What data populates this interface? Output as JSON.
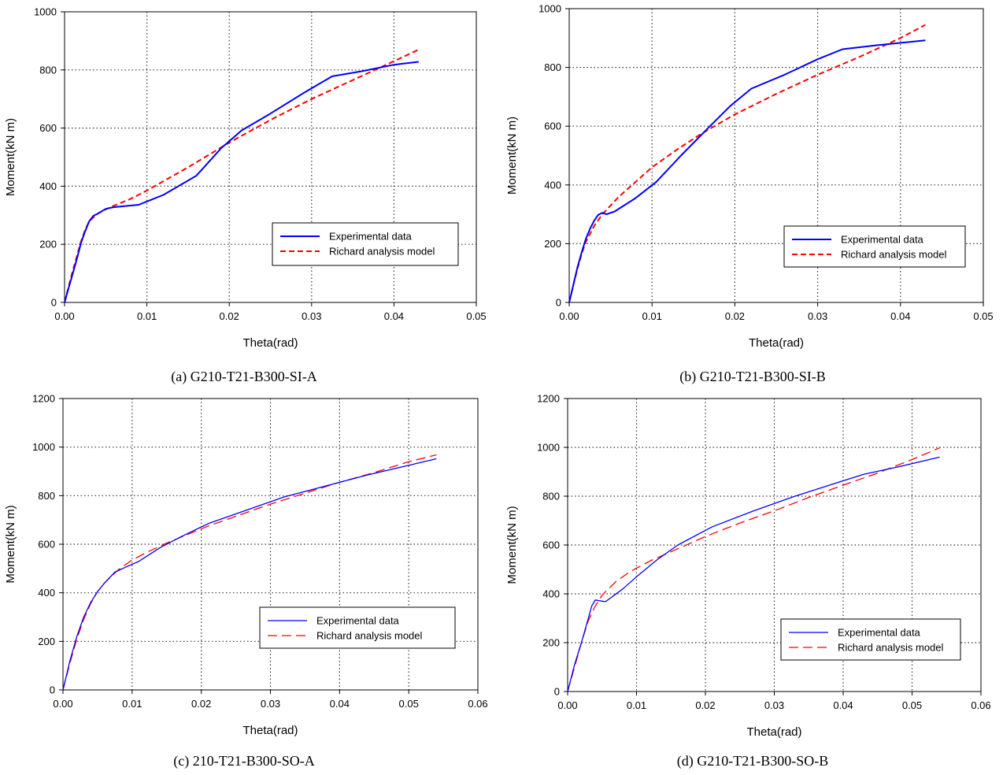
{
  "colors": {
    "experimental": "#0000ff",
    "richard": "#ff0000",
    "grid": "#333333"
  },
  "chart_data": [
    {
      "type": "line",
      "caption": "(a)  G210-T21-B300-SI-A",
      "xlabel": "Theta(rad)",
      "ylabel": "Moment(kN m)",
      "xlim": [
        0,
        0.05
      ],
      "ylim": [
        0,
        1000
      ],
      "xticks": [
        "0.00",
        "0.01",
        "0.02",
        "0.03",
        "0.04",
        "0.05"
      ],
      "yticks": [
        "0",
        "200",
        "400",
        "600",
        "800",
        "1000"
      ],
      "grid": true,
      "legend_position": "bottom-right",
      "series": [
        {
          "name": "Experimental data",
          "style": "solid",
          "color": "#0000ff",
          "x": [
            0,
            0.0005,
            0.001,
            0.0015,
            0.002,
            0.0025,
            0.003,
            0.0035,
            0.004,
            0.005,
            0.006,
            0.009,
            0.012,
            0.016,
            0.019,
            0.0215,
            0.025,
            0.029,
            0.0325,
            0.036,
            0.04,
            0.043
          ],
          "y": [
            0,
            50,
            100,
            150,
            205,
            245,
            280,
            298,
            305,
            322,
            328,
            336,
            370,
            436,
            530,
            592,
            650,
            720,
            778,
            795,
            818,
            828
          ]
        },
        {
          "name": "Richard analysis model",
          "style": "dashed",
          "color": "#ff0000",
          "x": [
            0,
            0.0005,
            0.001,
            0.0015,
            0.002,
            0.0025,
            0.003,
            0.004,
            0.005,
            0.006,
            0.008,
            0.01,
            0.015,
            0.02,
            0.025,
            0.03,
            0.035,
            0.04,
            0.043
          ],
          "y": [
            0,
            55,
            110,
            160,
            210,
            250,
            280,
            305,
            320,
            333,
            356,
            385,
            465,
            550,
            628,
            700,
            765,
            830,
            870
          ]
        }
      ]
    },
    {
      "type": "line",
      "caption": "(b)  G210-T21-B300-SI-B",
      "xlabel": "Theta(rad)",
      "ylabel": "Moment(kN m)",
      "xlim": [
        0,
        0.05
      ],
      "ylim": [
        0,
        1000
      ],
      "xticks": [
        "0.00",
        "0.01",
        "0.02",
        "0.03",
        "0.04",
        "0.05"
      ],
      "yticks": [
        "0",
        "200",
        "400",
        "600",
        "800",
        "1000"
      ],
      "grid": true,
      "legend_position": "bottom-right",
      "series": [
        {
          "name": "Experimental data",
          "style": "solid",
          "color": "#0000ff",
          "x": [
            0,
            0.0005,
            0.001,
            0.0015,
            0.002,
            0.0025,
            0.003,
            0.0035,
            0.004,
            0.0045,
            0.0055,
            0.008,
            0.0105,
            0.0135,
            0.017,
            0.0195,
            0.022,
            0.026,
            0.03,
            0.033,
            0.037,
            0.043
          ],
          "y": [
            0,
            60,
            120,
            170,
            215,
            250,
            278,
            298,
            305,
            300,
            310,
            355,
            410,
            500,
            600,
            670,
            728,
            775,
            828,
            862,
            875,
            892
          ]
        },
        {
          "name": "Richard analysis model",
          "style": "dashed",
          "color": "#ff0000",
          "x": [
            0,
            0.0005,
            0.001,
            0.0015,
            0.002,
            0.003,
            0.004,
            0.005,
            0.006,
            0.008,
            0.01,
            0.013,
            0.016,
            0.02,
            0.025,
            0.03,
            0.035,
            0.04,
            0.043
          ],
          "y": [
            0,
            60,
            115,
            165,
            205,
            260,
            300,
            330,
            360,
            410,
            460,
            520,
            575,
            640,
            710,
            775,
            835,
            900,
            945
          ]
        }
      ]
    },
    {
      "type": "line",
      "caption": "(c)  210-T21-B300-SO-A",
      "xlabel": "Theta(rad)",
      "ylabel": "Moment(kN m)",
      "xlim": [
        0,
        0.06
      ],
      "ylim": [
        0,
        1200
      ],
      "xticks": [
        "0.00",
        "0.01",
        "0.02",
        "0.03",
        "0.04",
        "0.05",
        "0.06"
      ],
      "yticks": [
        "0",
        "200",
        "400",
        "600",
        "800",
        "1000",
        "1200"
      ],
      "grid": true,
      "legend_position": "bottom-right",
      "series": [
        {
          "name": "Experimental data",
          "style": "solid",
          "color": "#0000ff",
          "x": [
            0,
            0.001,
            0.002,
            0.003,
            0.004,
            0.005,
            0.006,
            0.0075,
            0.009,
            0.011,
            0.014,
            0.017,
            0.021,
            0.026,
            0.032,
            0.038,
            0.044,
            0.049,
            0.054
          ],
          "y": [
            0,
            120,
            220,
            300,
            360,
            405,
            440,
            485,
            505,
            530,
            585,
            630,
            685,
            735,
            795,
            840,
            885,
            918,
            952
          ]
        },
        {
          "name": "Richard analysis model",
          "style": "dashed",
          "color": "#ff0000",
          "x": [
            0,
            0.001,
            0.002,
            0.003,
            0.004,
            0.005,
            0.006,
            0.008,
            0.01,
            0.012,
            0.015,
            0.018,
            0.021,
            0.025,
            0.03,
            0.035,
            0.04,
            0.045,
            0.05,
            0.054
          ],
          "y": [
            0,
            110,
            210,
            290,
            355,
            405,
            440,
            495,
            535,
            565,
            605,
            640,
            675,
            715,
            765,
            810,
            855,
            895,
            940,
            968
          ]
        }
      ]
    },
    {
      "type": "line",
      "caption": "(d)  G210-T21-B300-SO-B",
      "xlabel": "Theta(rad)",
      "ylabel": "Moment(kN m)",
      "xlim": [
        0,
        0.06
      ],
      "ylim": [
        0,
        1200
      ],
      "xticks": [
        "0.00",
        "0.01",
        "0.02",
        "0.03",
        "0.04",
        "0.05",
        "0.06"
      ],
      "yticks": [
        "0",
        "200",
        "400",
        "600",
        "800",
        "1000",
        "1200"
      ],
      "grid": true,
      "legend_position": "bottom-right",
      "series": [
        {
          "name": "Experimental data",
          "style": "solid",
          "color": "#0000ff",
          "x": [
            0,
            0.001,
            0.002,
            0.003,
            0.0035,
            0.004,
            0.005,
            0.0055,
            0.008,
            0.01,
            0.013,
            0.016,
            0.021,
            0.027,
            0.033,
            0.038,
            0.043,
            0.048,
            0.054
          ],
          "y": [
            0,
            110,
            200,
            300,
            350,
            375,
            370,
            368,
            420,
            470,
            540,
            600,
            675,
            740,
            800,
            845,
            890,
            920,
            960
          ]
        },
        {
          "name": "Richard analysis model",
          "style": "dashed",
          "color": "#ff0000",
          "x": [
            0,
            0.001,
            0.002,
            0.003,
            0.004,
            0.005,
            0.007,
            0.009,
            0.012,
            0.016,
            0.02,
            0.025,
            0.03,
            0.035,
            0.04,
            0.045,
            0.05,
            0.054
          ],
          "y": [
            0,
            100,
            200,
            290,
            350,
            395,
            450,
            490,
            535,
            585,
            635,
            690,
            740,
            795,
            845,
            895,
            950,
            998
          ]
        }
      ]
    }
  ]
}
